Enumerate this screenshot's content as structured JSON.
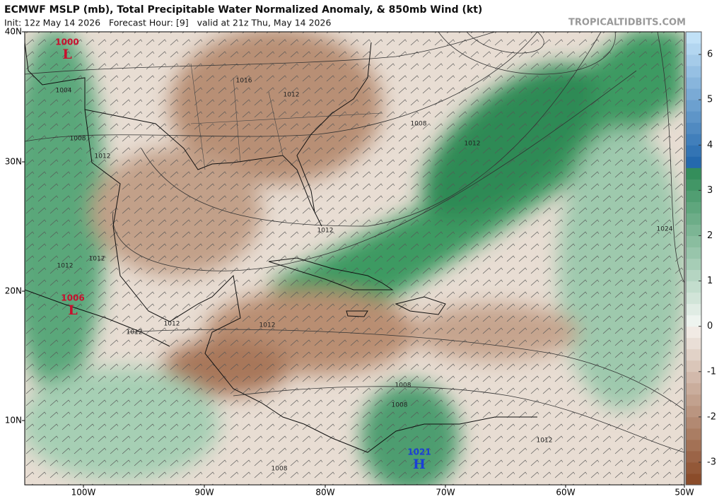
{
  "header": {
    "title": "ECMWF MSLP (mb), Total Precipitable Water Normalized Anomaly, & 850mb Wind (kt)",
    "init": "Init: 12z May 14 2026   Forecast Hour: [9]   valid at 21z Thu, May 14 2026",
    "watermark": "TROPICALTIDBITS.COM"
  },
  "map": {
    "lat_labels": [
      "40N",
      "30N",
      "20N",
      "10N"
    ],
    "lon_labels": [
      "100W",
      "90W",
      "80W",
      "70W",
      "60W",
      "50W"
    ],
    "isobar_labels": [
      1004,
      1008,
      1012,
      1016,
      1012,
      1008,
      1012,
      1012,
      1024,
      1012,
      1012,
      1012,
      1012,
      1012,
      1008,
      1008,
      1012,
      1008
    ],
    "pressure_centers": [
      {
        "value": 1000,
        "symbol": "L"
      },
      {
        "value": 1006,
        "symbol": "L"
      },
      {
        "value": 1021,
        "symbol": "H"
      }
    ]
  },
  "colorbar": {
    "ticks": [
      6,
      5,
      4,
      3,
      2,
      1,
      0,
      -1,
      -2,
      -3
    ]
  }
}
